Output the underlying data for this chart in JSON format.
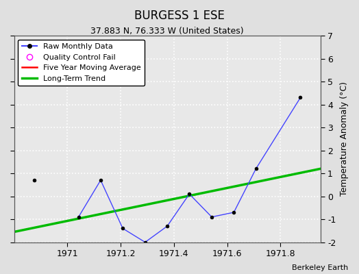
{
  "title": "BURGESS 1 ESE",
  "subtitle": "37.883 N, 76.333 W (United States)",
  "credit": "Berkeley Earth",
  "xlim": [
    1970.8,
    1971.95
  ],
  "ylim": [
    -2,
    7
  ],
  "yticks": [
    -2,
    -1,
    0,
    1,
    2,
    3,
    4,
    5,
    6,
    7
  ],
  "xticks": [
    1971.0,
    1971.2,
    1971.4,
    1971.6,
    1971.8
  ],
  "ylabel": "Temperature Anomaly (°C)",
  "fig_bg_color": "#e0e0e0",
  "plot_bg_color": "#e8e8e8",
  "grid_color": "#ffffff",
  "raw_x": [
    1970.875,
    1971.042,
    1971.125,
    1971.208,
    1971.292,
    1971.375,
    1971.458,
    1971.542,
    1971.625,
    1971.708,
    1971.875
  ],
  "raw_y": [
    0.7,
    -0.9,
    0.7,
    -1.4,
    -2.0,
    -1.3,
    0.1,
    -0.9,
    -0.7,
    1.2,
    4.3
  ],
  "trend_x": [
    1970.8,
    1971.95
  ],
  "trend_y": [
    -1.55,
    1.2
  ],
  "line_color": "#4444ff",
  "marker_color": "black",
  "trend_color": "#00bb00",
  "ma_color": "red",
  "title_fontsize": 12,
  "subtitle_fontsize": 9,
  "tick_fontsize": 9,
  "ylabel_fontsize": 9,
  "legend_fontsize": 8
}
